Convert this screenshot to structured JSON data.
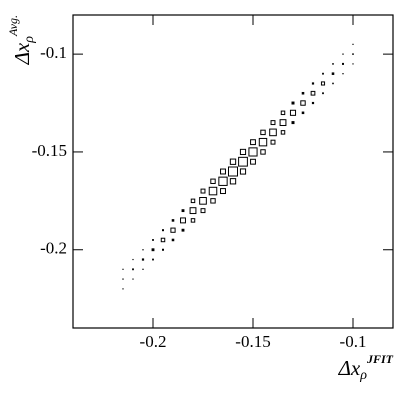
{
  "chart_data": {
    "type": "box2d",
    "xlabel": "Δx",
    "xlabel_sub": "ρ",
    "xlabel_sup": "JFIT",
    "ylabel": "Δx",
    "ylabel_sub": "ρ",
    "ylabel_sup": "Avg.",
    "xlim": [
      -0.24,
      -0.08
    ],
    "ylim": [
      -0.24,
      -0.08
    ],
    "xticks": [
      -0.2,
      -0.15,
      -0.1
    ],
    "yticks": [
      -0.2,
      -0.15,
      -0.1
    ],
    "color": "#000000",
    "x": [
      -0.215,
      -0.215,
      -0.215,
      -0.21,
      -0.21,
      -0.21,
      -0.205,
      -0.205,
      -0.205,
      -0.2,
      -0.2,
      -0.2,
      -0.195,
      -0.195,
      -0.195,
      -0.19,
      -0.19,
      -0.19,
      -0.185,
      -0.185,
      -0.185,
      -0.18,
      -0.18,
      -0.18,
      -0.175,
      -0.175,
      -0.175,
      -0.17,
      -0.17,
      -0.17,
      -0.165,
      -0.165,
      -0.165,
      -0.16,
      -0.16,
      -0.16,
      -0.155,
      -0.155,
      -0.155,
      -0.15,
      -0.15,
      -0.15,
      -0.145,
      -0.145,
      -0.145,
      -0.14,
      -0.14,
      -0.14,
      -0.135,
      -0.135,
      -0.135,
      -0.13,
      -0.13,
      -0.13,
      -0.125,
      -0.125,
      -0.125,
      -0.12,
      -0.12,
      -0.12,
      -0.115,
      -0.115,
      -0.115,
      -0.11,
      -0.11,
      -0.11,
      -0.105,
      -0.105,
      -0.105,
      -0.1,
      -0.1,
      -0.1
    ],
    "y": [
      -0.22,
      -0.215,
      -0.21,
      -0.215,
      -0.21,
      -0.205,
      -0.21,
      -0.205,
      -0.2,
      -0.205,
      -0.2,
      -0.195,
      -0.2,
      -0.195,
      -0.19,
      -0.195,
      -0.19,
      -0.185,
      -0.19,
      -0.185,
      -0.18,
      -0.185,
      -0.18,
      -0.175,
      -0.18,
      -0.175,
      -0.17,
      -0.175,
      -0.17,
      -0.165,
      -0.17,
      -0.165,
      -0.16,
      -0.165,
      -0.16,
      -0.155,
      -0.16,
      -0.155,
      -0.15,
      -0.155,
      -0.15,
      -0.145,
      -0.15,
      -0.145,
      -0.14,
      -0.145,
      -0.14,
      -0.135,
      -0.14,
      -0.135,
      -0.13,
      -0.135,
      -0.13,
      -0.125,
      -0.13,
      -0.125,
      -0.12,
      -0.125,
      -0.12,
      -0.115,
      -0.12,
      -0.115,
      -0.11,
      -0.115,
      -0.11,
      -0.105,
      -0.11,
      -0.105,
      -0.1,
      -0.105,
      -0.1,
      -0.095
    ],
    "values": [
      1,
      2,
      1,
      1,
      4,
      1,
      2,
      6,
      2,
      4,
      10,
      4,
      5,
      15,
      5,
      8,
      22,
      8,
      10,
      30,
      10,
      15,
      42,
      15,
      19,
      55,
      19,
      24,
      70,
      24,
      30,
      85,
      30,
      35,
      100,
      35,
      33,
      95,
      33,
      29,
      82,
      29,
      24,
      68,
      24,
      19,
      54,
      19,
      15,
      42,
      15,
      11,
      32,
      11,
      8,
      24,
      8,
      6,
      17,
      6,
      4,
      12,
      4,
      3,
      8,
      3,
      2,
      5,
      2,
      1,
      3,
      1
    ]
  }
}
